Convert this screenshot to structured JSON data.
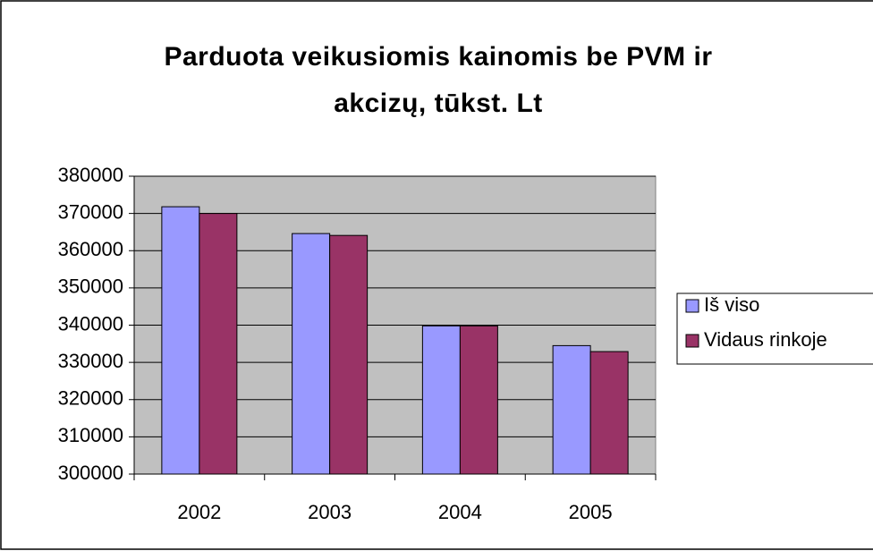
{
  "chart_data": {
    "type": "bar",
    "title": "Parduota veikusiomis kainomis be PVM ir akcizų, tūkst. Lt",
    "categories": [
      "2002",
      "2003",
      "2004",
      "2005"
    ],
    "series": [
      {
        "name": "Iš viso",
        "color": "#9999ff",
        "values": [
          371800,
          364600,
          339800,
          334500
        ]
      },
      {
        "name": "Vidaus rinkoje",
        "color": "#993366",
        "values": [
          370000,
          364100,
          339800,
          332900
        ]
      }
    ],
    "ylim": [
      300000,
      380000
    ],
    "yticks": [
      300000,
      310000,
      320000,
      330000,
      340000,
      350000,
      360000,
      370000,
      380000
    ],
    "grid": true,
    "legend": "right"
  }
}
